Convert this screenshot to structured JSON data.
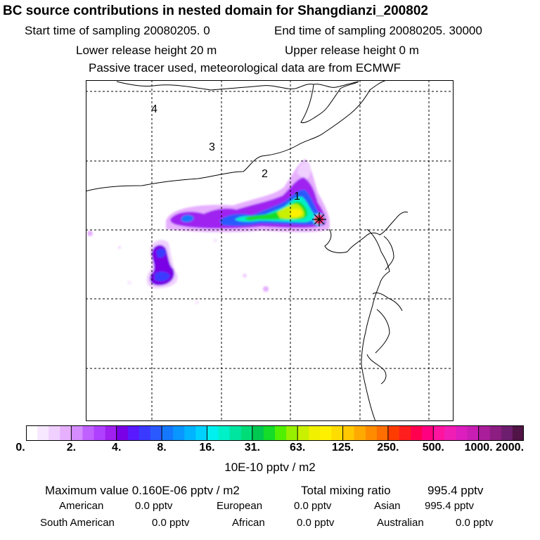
{
  "header": {
    "title": "BC  source contributions in nested domain for Shangdianzi_200802",
    "start_label": "Start time of sampling 20080205.     0",
    "end_label": "End time of sampling 20080205. 30000",
    "lower_label": "Lower release height   20 m",
    "upper_label": "Upper release height    0 m",
    "note": "Passive tracer used, meteorological data are from ECMWF"
  },
  "chart_data": {
    "type": "heatmap",
    "title": "BC  source contributions in nested domain for Shangdianzi_200802",
    "colorbar": {
      "ticks": [
        "0.",
        "2.",
        "4.",
        "8.",
        "16.",
        "31.",
        "63.",
        "125.",
        "250.",
        "500.",
        "1000.",
        "2000."
      ],
      "unit_label": "10E-10 pptv / m2",
      "colors": [
        "#ffffff",
        "#f8e8ff",
        "#f0d0ff",
        "#e6b0ff",
        "#d48cff",
        "#c060ff",
        "#b040ff",
        "#a020f0",
        "#7a00e6",
        "#5a1aff",
        "#3a3aff",
        "#2a5aff",
        "#1478ff",
        "#0a96ff",
        "#00b4ff",
        "#00d2ff",
        "#00f0f0",
        "#00f0c8",
        "#00e6a0",
        "#00dc78",
        "#00c850",
        "#14dc28",
        "#50f000",
        "#96f000",
        "#c8f000",
        "#f0f000",
        "#fff000",
        "#ffdc00",
        "#ffc800",
        "#ffaa00",
        "#ff8c00",
        "#ff6e00",
        "#ff3c00",
        "#ff1e1e",
        "#ff0050",
        "#ff0080",
        "#ff14a0",
        "#f01eb4",
        "#dc1ebe",
        "#c81eb4",
        "#aa1e9b",
        "#8c1e82",
        "#6e1e6e",
        "#501446"
      ]
    },
    "region_labels": [
      "1",
      "2",
      "3",
      "4"
    ],
    "receptor": "Shangdianzi"
  },
  "footer": {
    "max_label": "Maximum value  0.160E-06 pptv / m2",
    "total_label": "Total mixing ratio",
    "total_value": "995.4 pptv",
    "rows": [
      [
        {
          "name": "American",
          "value": "0.0 pptv"
        },
        {
          "name": "European",
          "value": "0.0 pptv"
        },
        {
          "name": "Asian",
          "value": "995.4 pptv"
        }
      ],
      [
        {
          "name": "South American",
          "value": "0.0 pptv"
        },
        {
          "name": "African",
          "value": "0.0 pptv"
        },
        {
          "name": "Australian",
          "value": "0.0 pptv"
        }
      ]
    ]
  }
}
